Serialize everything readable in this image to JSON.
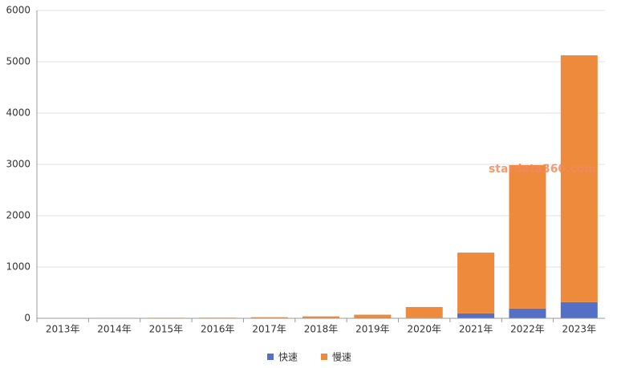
{
  "chart_data": {
    "type": "stacked_bar",
    "categories": [
      "2013年",
      "2014年",
      "2015年",
      "2016年",
      "2017年",
      "2018年",
      "2019年",
      "2020年",
      "2021年",
      "2022年",
      "2023年"
    ],
    "series": [
      {
        "name": "快速",
        "color": "#5470c6",
        "values": [
          0,
          0,
          0,
          0,
          1,
          2,
          5,
          10,
          95,
          190,
          315
        ]
      },
      {
        "name": "慢速",
        "color": "#ed8a3c",
        "values": [
          5,
          8,
          10,
          12,
          20,
          35,
          65,
          210,
          1185,
          2795,
          4810
        ]
      }
    ],
    "ylim": [
      0,
      6000
    ],
    "yticks": [
      0,
      1000,
      2000,
      3000,
      4000,
      5000,
      6000
    ],
    "grid": true,
    "legend": "bottom",
    "watermark": "stardata360.com"
  }
}
